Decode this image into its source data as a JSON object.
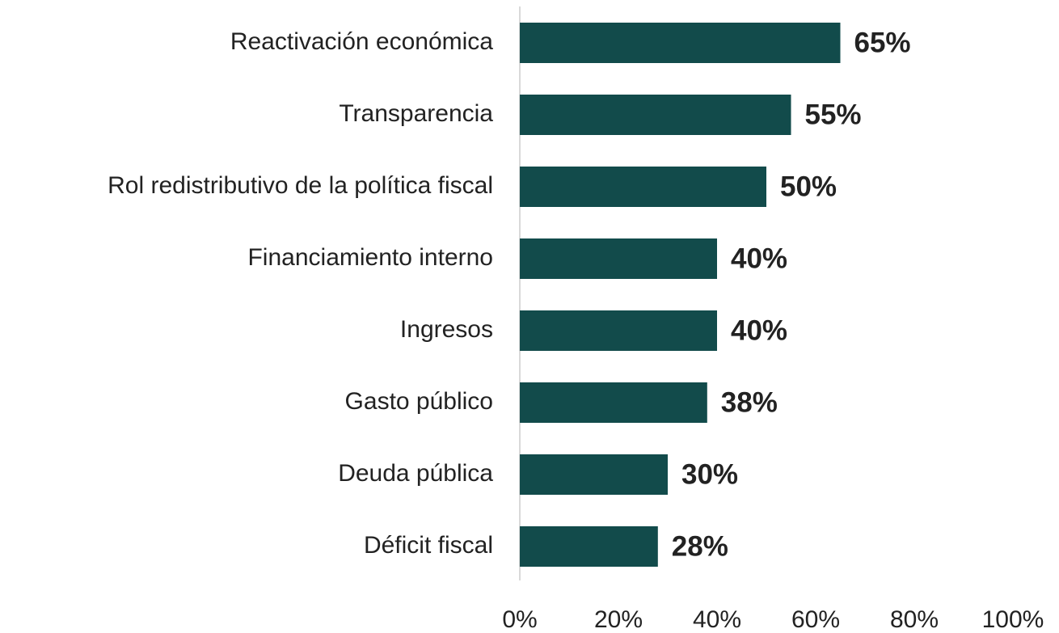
{
  "chart_data": {
    "type": "bar",
    "orientation": "horizontal",
    "categories": [
      "Reactivación económica",
      "Transparencia",
      "Rol redistributivo de la política fiscal",
      "Financiamiento interno",
      "Ingresos",
      "Gasto público",
      "Deuda pública",
      "Déficit fiscal"
    ],
    "values": [
      65,
      55,
      50,
      40,
      40,
      38,
      30,
      28
    ],
    "value_labels": [
      "65%",
      "55%",
      "50%",
      "40%",
      "40%",
      "38%",
      "30%",
      "28%"
    ],
    "color": "#124b4b",
    "xlim": [
      0,
      100
    ],
    "xticks": [
      {
        "value": 0,
        "label": "0%"
      },
      {
        "value": 20,
        "label": "20%"
      },
      {
        "value": 40,
        "label": "40%"
      },
      {
        "value": 60,
        "label": "60%"
      },
      {
        "value": 80,
        "label": "80%"
      },
      {
        "value": 100,
        "label": "100%"
      }
    ],
    "grid": false
  }
}
